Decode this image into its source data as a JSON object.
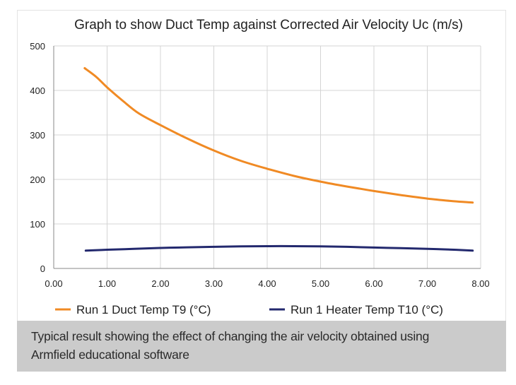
{
  "chart_data": {
    "type": "line",
    "title": "Graph to show Duct Temp against Corrected Air Velocity Uc (m/s)",
    "xlabel": "",
    "ylabel": "",
    "xlim": [
      0,
      8
    ],
    "ylim": [
      0,
      500
    ],
    "x_ticks": [
      "0.00",
      "1.00",
      "2.00",
      "3.00",
      "4.00",
      "5.00",
      "6.00",
      "7.00",
      "8.00"
    ],
    "y_ticks": [
      "0",
      "100",
      "200",
      "300",
      "400",
      "500"
    ],
    "grid": true,
    "legend_position": "bottom",
    "series": [
      {
        "name": "Run 1 Duct Temp T9 (°C)",
        "color": "#f08a24",
        "x": [
          0.58,
          0.8,
          1.0,
          1.3,
          1.6,
          2.0,
          2.5,
          3.0,
          3.5,
          4.0,
          4.5,
          5.0,
          5.5,
          6.0,
          6.5,
          7.0,
          7.5,
          7.85
        ],
        "y": [
          450,
          430,
          407,
          376,
          348,
          322,
          292,
          265,
          242,
          224,
          208,
          195,
          184,
          174,
          165,
          157,
          151,
          148
        ]
      },
      {
        "name": "Run 1 Heater Temp T10 (°C)",
        "color": "#23296e",
        "x": [
          0.6,
          1.0,
          1.5,
          2.0,
          2.5,
          3.0,
          3.5,
          4.0,
          4.5,
          5.0,
          5.5,
          6.0,
          6.5,
          7.0,
          7.5,
          7.85
        ],
        "y": [
          40,
          42,
          44,
          46,
          47.5,
          48.5,
          49.5,
          50,
          50,
          49.5,
          48.5,
          47,
          45.5,
          44,
          42,
          40
        ]
      }
    ]
  },
  "caption": {
    "line1": "Typical result showing the effect of changing the air velocity obtained using",
    "line2": "Armfield educational software"
  }
}
